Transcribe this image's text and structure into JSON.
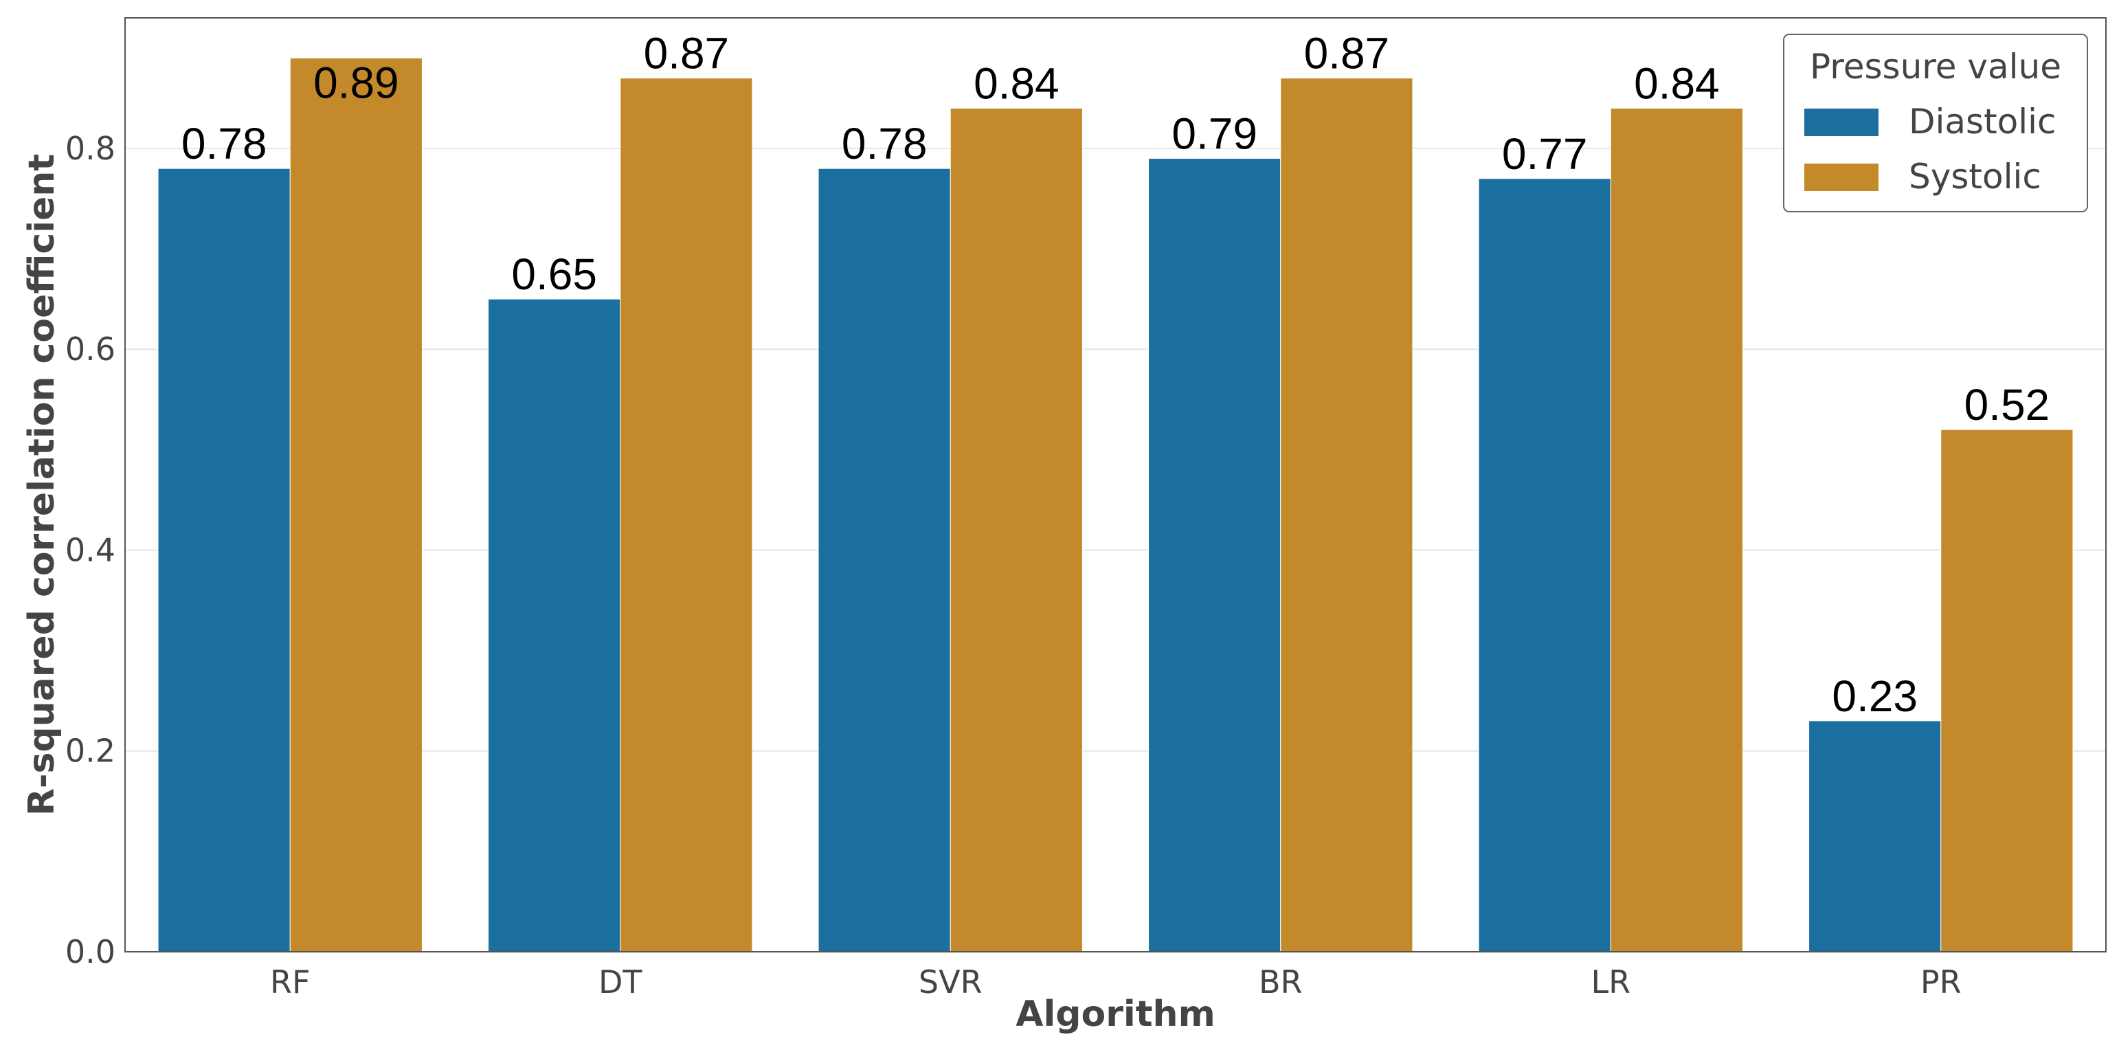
{
  "chart_data": {
    "type": "bar",
    "title": "",
    "xlabel": "Algorithm",
    "ylabel": "R-squared correlation coefficient",
    "categories": [
      "RF",
      "DT",
      "SVR",
      "BR",
      "LR",
      "PR"
    ],
    "ylim": [
      0,
      0.93
    ],
    "yticks": [
      0.0,
      0.2,
      0.4,
      0.6,
      0.8
    ],
    "ytick_labels": [
      "0.0",
      "0.2",
      "0.4",
      "0.6",
      "0.8"
    ],
    "grid": true,
    "legend": {
      "title": "Pressure value",
      "position": "top-right"
    },
    "series": [
      {
        "name": "Diastolic",
        "color": "#1b6f9f",
        "values": [
          0.78,
          0.65,
          0.78,
          0.79,
          0.77,
          0.23
        ],
        "labels": [
          "0.78",
          "0.65",
          "0.78",
          "0.79",
          "0.77",
          "0.23"
        ]
      },
      {
        "name": "Systolic",
        "color": "#c4892b",
        "values": [
          0.89,
          0.87,
          0.84,
          0.87,
          0.84,
          0.52
        ],
        "labels": [
          "0.89",
          "0.87",
          "0.84",
          "0.87",
          "0.84",
          "0.52"
        ]
      }
    ]
  }
}
